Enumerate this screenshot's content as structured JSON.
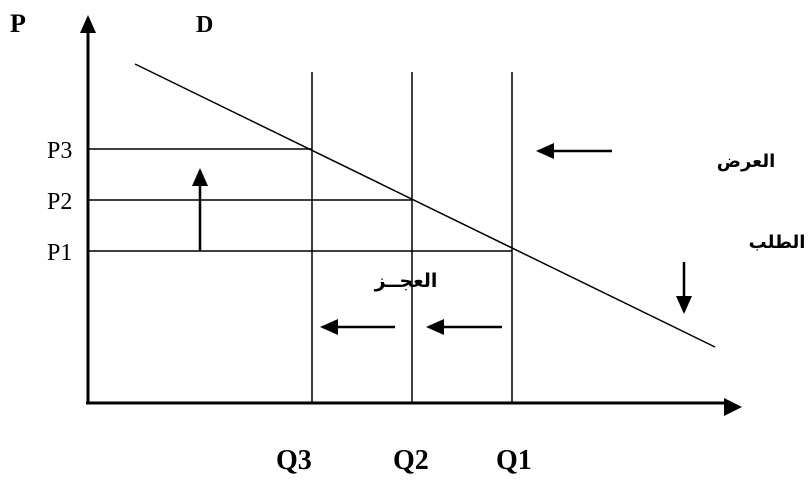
{
  "diagram": {
    "axis_labels": {
      "y": "P",
      "curve": "D"
    },
    "price_levels": [
      "P3",
      "P2",
      "P1"
    ],
    "quantity_levels": [
      "Q3",
      "Q2",
      "Q1"
    ],
    "annotations": {
      "supply": "العرض",
      "demand": "الطلب",
      "shortage": "العجــز"
    },
    "colors": {
      "line": "#000000",
      "background": "#ffffff"
    }
  }
}
